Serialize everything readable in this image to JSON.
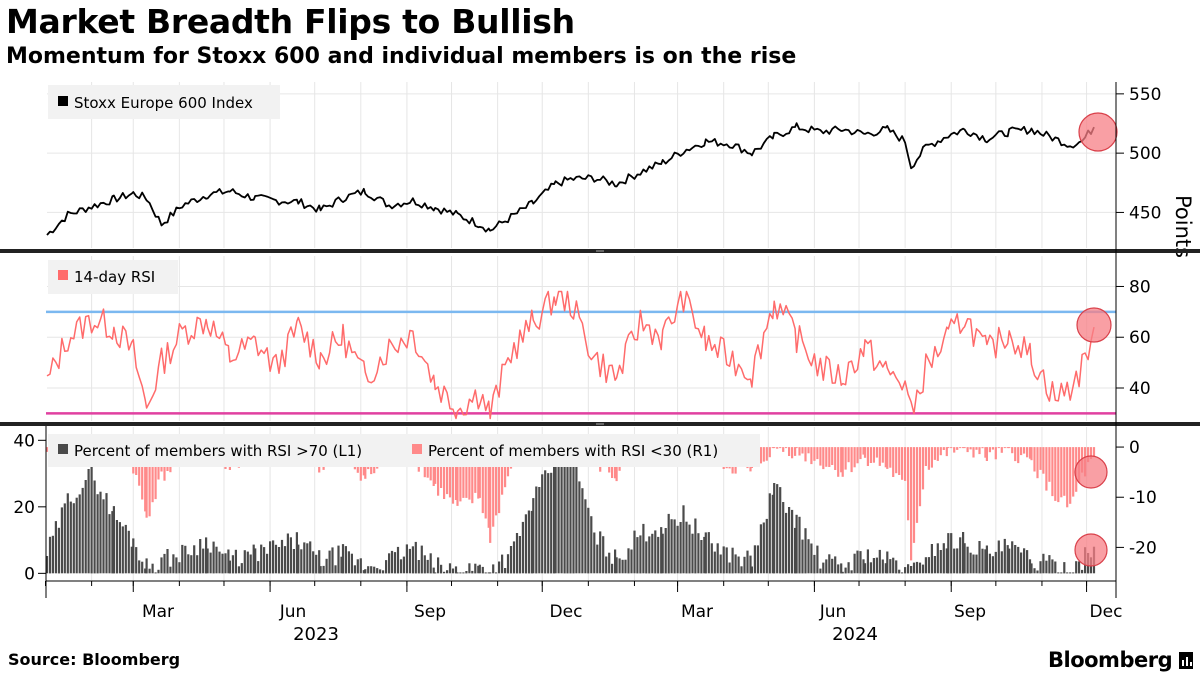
{
  "title": "Market Breadth Flips to Bullish",
  "subtitle": "Momentum for Stoxx 600 and individual members is on the rise",
  "source": "Source: Bloomberg",
  "brand": "Bloomberg",
  "x_axis": {
    "months": [
      "Mar",
      "Jun",
      "Sep",
      "Dec",
      "Mar",
      "Jun",
      "Sep",
      "Dec"
    ],
    "years": [
      "2023",
      "2024"
    ]
  },
  "chart_data": [
    {
      "type": "line",
      "title": "Stoxx Europe 600 Index",
      "legend": "Stoxx Europe 600 Index",
      "ylabel": "Points",
      "ylim": [
        420,
        560
      ],
      "yticks": [
        "450",
        "500",
        "550"
      ],
      "color": "#000000",
      "x": [
        "2023-01-02",
        "2023-01-16",
        "2023-02-01",
        "2023-02-16",
        "2023-03-01",
        "2023-03-10",
        "2023-03-20",
        "2023-04-03",
        "2023-04-20",
        "2023-05-05",
        "2023-05-22",
        "2023-06-05",
        "2023-06-20",
        "2023-07-05",
        "2023-07-20",
        "2023-08-04",
        "2023-08-20",
        "2023-09-05",
        "2023-09-20",
        "2023-10-05",
        "2023-10-20",
        "2023-10-27",
        "2023-11-10",
        "2023-11-25",
        "2023-12-10",
        "2023-12-20",
        "2024-01-05",
        "2024-01-20",
        "2024-02-05",
        "2024-02-20",
        "2024-03-05",
        "2024-03-20",
        "2024-04-05",
        "2024-04-20",
        "2024-05-05",
        "2024-05-20",
        "2024-06-05",
        "2024-06-20",
        "2024-07-05",
        "2024-07-20",
        "2024-08-01",
        "2024-08-05",
        "2024-08-15",
        "2024-08-30",
        "2024-09-10",
        "2024-09-25",
        "2024-10-10",
        "2024-10-25",
        "2024-11-10",
        "2024-11-20",
        "2024-11-28",
        "2024-12-06"
      ],
      "values": [
        431,
        448,
        455,
        461,
        466,
        462,
        440,
        456,
        465,
        468,
        462,
        460,
        459,
        452,
        462,
        468,
        456,
        460,
        454,
        448,
        440,
        435,
        446,
        458,
        474,
        478,
        479,
        474,
        484,
        492,
        502,
        510,
        508,
        500,
        514,
        522,
        518,
        520,
        516,
        520,
        510,
        489,
        505,
        515,
        520,
        512,
        518,
        520,
        512,
        507,
        510,
        522
      ]
    },
    {
      "type": "line",
      "title": "14-day RSI",
      "legend": "14-day RSI",
      "ylim": [
        27,
        92
      ],
      "yticks": [
        "40",
        "60",
        "80"
      ],
      "color": "#ff6b6b",
      "reference_lines": [
        {
          "value": 70,
          "color": "#7bb8f0"
        },
        {
          "value": 30,
          "color": "#e040a0"
        }
      ],
      "x": [
        "2023-01-02",
        "2023-01-16",
        "2023-02-01",
        "2023-02-16",
        "2023-03-01",
        "2023-03-10",
        "2023-03-20",
        "2023-04-03",
        "2023-04-20",
        "2023-05-05",
        "2023-05-22",
        "2023-06-05",
        "2023-06-20",
        "2023-07-05",
        "2023-07-20",
        "2023-08-04",
        "2023-08-20",
        "2023-09-05",
        "2023-09-20",
        "2023-10-05",
        "2023-10-20",
        "2023-10-27",
        "2023-11-10",
        "2023-11-25",
        "2023-12-10",
        "2023-12-20",
        "2024-01-05",
        "2024-01-20",
        "2024-02-05",
        "2024-02-20",
        "2024-03-05",
        "2024-03-20",
        "2024-04-05",
        "2024-04-20",
        "2024-05-05",
        "2024-05-20",
        "2024-06-05",
        "2024-06-20",
        "2024-07-05",
        "2024-07-20",
        "2024-08-01",
        "2024-08-05",
        "2024-08-15",
        "2024-08-30",
        "2024-09-10",
        "2024-09-25",
        "2024-10-10",
        "2024-10-25",
        "2024-11-10",
        "2024-11-20",
        "2024-11-28",
        "2024-12-06"
      ],
      "values": [
        42,
        60,
        67,
        64,
        54,
        32,
        50,
        62,
        67,
        52,
        58,
        48,
        64,
        52,
        60,
        44,
        56,
        62,
        42,
        32,
        38,
        30,
        54,
        66,
        76,
        74,
        52,
        44,
        66,
        60,
        76,
        58,
        52,
        46,
        74,
        60,
        48,
        44,
        56,
        46,
        42,
        29,
        48,
        60,
        68,
        54,
        62,
        52,
        36,
        40,
        48,
        64
      ]
    },
    {
      "type": "bar",
      "title": "Percent of members with RSI >70 (L1)",
      "legend": "Percent of members with RSI >70 (L1)",
      "axis": "left",
      "ylim": [
        -2,
        44
      ],
      "yticks": [
        "0",
        "20",
        "40"
      ],
      "color": "#4a4a4a",
      "x": [
        "2023-01-02",
        "2023-01-16",
        "2023-02-01",
        "2023-02-16",
        "2023-03-01",
        "2023-03-10",
        "2023-03-20",
        "2023-04-03",
        "2023-04-20",
        "2023-05-05",
        "2023-05-22",
        "2023-06-05",
        "2023-06-20",
        "2023-07-05",
        "2023-07-20",
        "2023-08-04",
        "2023-08-20",
        "2023-09-05",
        "2023-09-20",
        "2023-10-05",
        "2023-10-20",
        "2023-10-27",
        "2023-11-10",
        "2023-11-25",
        "2023-12-10",
        "2023-12-20",
        "2024-01-05",
        "2024-01-20",
        "2024-02-05",
        "2024-02-20",
        "2024-03-05",
        "2024-03-20",
        "2024-04-05",
        "2024-04-20",
        "2024-05-05",
        "2024-05-20",
        "2024-06-05",
        "2024-06-20",
        "2024-07-05",
        "2024-07-20",
        "2024-08-01",
        "2024-08-05",
        "2024-08-15",
        "2024-08-30",
        "2024-09-10",
        "2024-09-25",
        "2024-10-10",
        "2024-10-25",
        "2024-11-10",
        "2024-11-20",
        "2024-11-28",
        "2024-12-06"
      ],
      "values": [
        6,
        22,
        30,
        18,
        10,
        2,
        4,
        6,
        10,
        4,
        6,
        8,
        10,
        4,
        6,
        2,
        4,
        8,
        2,
        1,
        2,
        1,
        6,
        22,
        34,
        38,
        12,
        4,
        12,
        14,
        18,
        10,
        6,
        4,
        26,
        16,
        4,
        2,
        6,
        4,
        2,
        0,
        6,
        10,
        10,
        6,
        8,
        4,
        2,
        2,
        4,
        8
      ]
    },
    {
      "type": "bar",
      "title": "Percent of members with RSI <30 (R1)",
      "legend": "Percent of members with RSI <30 (R1)",
      "axis": "right",
      "ylim": [
        -26.5,
        4
      ],
      "yticks": [
        "0",
        "-10",
        "-20"
      ],
      "color": "#ff8a8a",
      "x": [
        "2023-01-02",
        "2023-01-16",
        "2023-02-01",
        "2023-02-16",
        "2023-03-01",
        "2023-03-10",
        "2023-03-20",
        "2023-04-03",
        "2023-04-20",
        "2023-05-05",
        "2023-05-22",
        "2023-06-05",
        "2023-06-20",
        "2023-07-05",
        "2023-07-20",
        "2023-08-04",
        "2023-08-20",
        "2023-09-05",
        "2023-09-20",
        "2023-10-05",
        "2023-10-20",
        "2023-10-27",
        "2023-11-10",
        "2023-11-25",
        "2023-12-10",
        "2023-12-20",
        "2024-01-05",
        "2024-01-20",
        "2024-02-05",
        "2024-02-20",
        "2024-03-05",
        "2024-03-20",
        "2024-04-05",
        "2024-04-20",
        "2024-05-05",
        "2024-05-20",
        "2024-06-05",
        "2024-06-20",
        "2024-07-05",
        "2024-07-20",
        "2024-08-01",
        "2024-08-05",
        "2024-08-15",
        "2024-08-30",
        "2024-09-10",
        "2024-09-25",
        "2024-10-10",
        "2024-10-25",
        "2024-11-10",
        "2024-11-20",
        "2024-11-28",
        "2024-12-06"
      ],
      "values": [
        -2,
        0,
        0,
        -1,
        -4,
        -14,
        -6,
        -2,
        0,
        -4,
        -2,
        -3,
        -1,
        -4,
        -2,
        -6,
        -3,
        -2,
        -8,
        -12,
        -10,
        -18,
        -4,
        -1,
        0,
        0,
        -3,
        -6,
        -1,
        -1,
        0,
        -2,
        -4,
        -5,
        0,
        -1,
        -3,
        -5,
        -2,
        -4,
        -8,
        -22,
        -4,
        -1,
        0,
        -2,
        -1,
        -3,
        -10,
        -12,
        -6,
        -2
      ]
    }
  ],
  "highlight_color": "#f77f86"
}
